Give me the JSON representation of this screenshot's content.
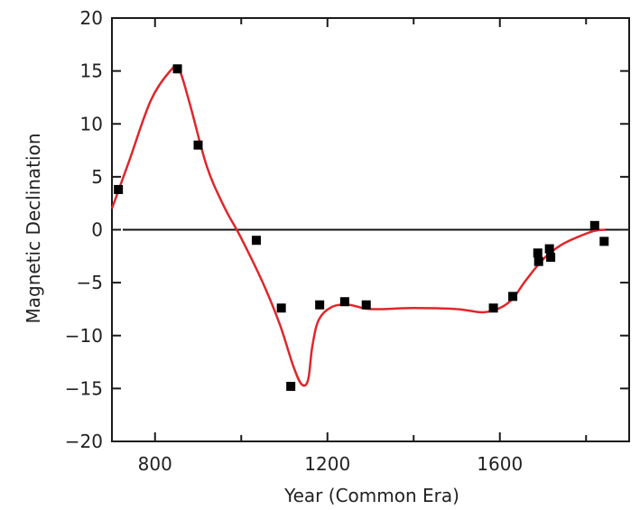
{
  "chart_data": {
    "type": "scatter",
    "title": "",
    "xlabel": "Year (Common Era)",
    "ylabel": "Magnetic Declination",
    "xlim": [
      700,
      1900
    ],
    "ylim": [
      -20,
      20
    ],
    "xticks": [
      800,
      1200,
      1600
    ],
    "yticks": [
      20,
      15,
      10,
      5,
      0,
      -5,
      -10,
      -15,
      -20
    ],
    "reference_line_y": 0,
    "grid": false,
    "series": [
      {
        "kind": "points",
        "color": "#000000",
        "points": [
          {
            "x": 715,
            "y": 3.8
          },
          {
            "x": 852,
            "y": 15.2
          },
          {
            "x": 900,
            "y": 8.0
          },
          {
            "x": 1035,
            "y": -1.0
          },
          {
            "x": 1093,
            "y": -7.4
          },
          {
            "x": 1115,
            "y": -14.8
          },
          {
            "x": 1182,
            "y": -7.1
          },
          {
            "x": 1240,
            "y": -6.8
          },
          {
            "x": 1290,
            "y": -7.1
          },
          {
            "x": 1585,
            "y": -7.4
          },
          {
            "x": 1630,
            "y": -6.3
          },
          {
            "x": 1688,
            "y": -2.2
          },
          {
            "x": 1690,
            "y": -3.0
          },
          {
            "x": 1715,
            "y": -1.8
          },
          {
            "x": 1718,
            "y": -2.6
          },
          {
            "x": 1820,
            "y": 0.4
          },
          {
            "x": 1842,
            "y": -1.1
          }
        ]
      },
      {
        "kind": "curve",
        "color": "#e0262b",
        "points": [
          {
            "x": 700,
            "y": 2.0
          },
          {
            "x": 740,
            "y": 6.5
          },
          {
            "x": 790,
            "y": 12.2
          },
          {
            "x": 835,
            "y": 15.0
          },
          {
            "x": 855,
            "y": 15.2
          },
          {
            "x": 880,
            "y": 12.0
          },
          {
            "x": 920,
            "y": 6.0
          },
          {
            "x": 960,
            "y": 2.2
          },
          {
            "x": 1000,
            "y": -0.8
          },
          {
            "x": 1050,
            "y": -5.0
          },
          {
            "x": 1090,
            "y": -9.0
          },
          {
            "x": 1120,
            "y": -12.8
          },
          {
            "x": 1140,
            "y": -14.6
          },
          {
            "x": 1155,
            "y": -14.2
          },
          {
            "x": 1165,
            "y": -11.0
          },
          {
            "x": 1180,
            "y": -8.5
          },
          {
            "x": 1210,
            "y": -7.3
          },
          {
            "x": 1250,
            "y": -7.1
          },
          {
            "x": 1300,
            "y": -7.5
          },
          {
            "x": 1400,
            "y": -7.4
          },
          {
            "x": 1500,
            "y": -7.5
          },
          {
            "x": 1560,
            "y": -7.8
          },
          {
            "x": 1600,
            "y": -7.4
          },
          {
            "x": 1630,
            "y": -6.5
          },
          {
            "x": 1660,
            "y": -4.8
          },
          {
            "x": 1700,
            "y": -2.8
          },
          {
            "x": 1740,
            "y": -1.5
          },
          {
            "x": 1780,
            "y": -0.7
          },
          {
            "x": 1820,
            "y": -0.1
          },
          {
            "x": 1845,
            "y": 0.0
          }
        ]
      }
    ]
  }
}
